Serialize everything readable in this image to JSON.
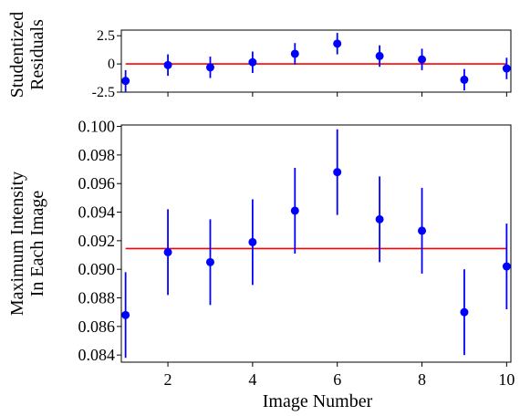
{
  "chart_data": [
    {
      "name": "residuals",
      "type": "scatter",
      "ylabel_lines": [
        "Studentized",
        "Residuals"
      ],
      "ylim": [
        -2.5,
        3.0
      ],
      "xlim": [
        0.9,
        10.1
      ],
      "yticks": [
        -2.5,
        0,
        2.5
      ],
      "ytick_labels": [
        "-2.5",
        "0",
        "2.5"
      ],
      "reference_line": 0,
      "points": [
        {
          "x": 1,
          "y": -1.5,
          "err": 0.95
        },
        {
          "x": 2,
          "y": -0.1,
          "err": 0.95
        },
        {
          "x": 3,
          "y": -0.3,
          "err": 0.95
        },
        {
          "x": 4,
          "y": 0.15,
          "err": 0.95
        },
        {
          "x": 5,
          "y": 0.9,
          "err": 0.95
        },
        {
          "x": 6,
          "y": 1.8,
          "err": 0.95
        },
        {
          "x": 7,
          "y": 0.7,
          "err": 0.95
        },
        {
          "x": 8,
          "y": 0.4,
          "err": 0.95
        },
        {
          "x": 9,
          "y": -1.4,
          "err": 0.95
        },
        {
          "x": 10,
          "y": -0.4,
          "err": 0.95
        }
      ]
    },
    {
      "name": "intensity",
      "type": "scatter",
      "xlabel": "Image Number",
      "ylabel_lines": [
        "Maximum Intensity",
        "In Each Image"
      ],
      "xlim": [
        0.9,
        10.1
      ],
      "ylim": [
        0.0835,
        0.1001
      ],
      "xticks": [
        2,
        4,
        6,
        8,
        10
      ],
      "xtick_labels": [
        "2",
        "4",
        "6",
        "8",
        "10"
      ],
      "yticks": [
        0.084,
        0.086,
        0.088,
        0.09,
        0.092,
        0.094,
        0.096,
        0.098,
        0.1
      ],
      "ytick_labels": [
        "0.084",
        "0.086",
        "0.088",
        "0.090",
        "0.092",
        "0.094",
        "0.096",
        "0.098",
        "0.100"
      ],
      "reference_line": 0.09145,
      "points": [
        {
          "x": 1,
          "y": 0.0868,
          "err": 0.003
        },
        {
          "x": 2,
          "y": 0.0912,
          "err": 0.003
        },
        {
          "x": 3,
          "y": 0.0905,
          "err": 0.003
        },
        {
          "x": 4,
          "y": 0.0919,
          "err": 0.003
        },
        {
          "x": 5,
          "y": 0.0941,
          "err": 0.003
        },
        {
          "x": 6,
          "y": 0.0968,
          "err": 0.003
        },
        {
          "x": 7,
          "y": 0.0935,
          "err": 0.003
        },
        {
          "x": 8,
          "y": 0.0927,
          "err": 0.003
        },
        {
          "x": 9,
          "y": 0.087,
          "err": 0.003
        },
        {
          "x": 10,
          "y": 0.0902,
          "err": 0.003
        }
      ]
    }
  ],
  "colors": {
    "marker": "#0000ff",
    "reference_line": "#ff0000",
    "axis": "#000000"
  }
}
